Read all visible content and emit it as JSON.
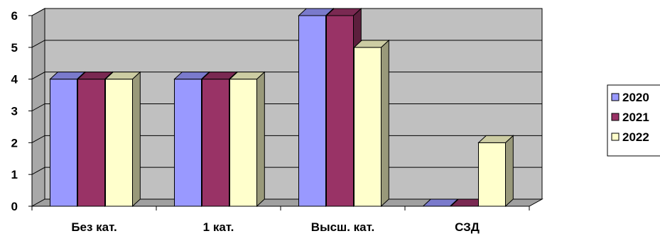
{
  "chart_data": {
    "type": "bar",
    "categories": [
      "Без кат.",
      "1 кат.",
      "Высш. кат.",
      "СЗД"
    ],
    "series": [
      {
        "name": "2020",
        "values": [
          4,
          4,
          6,
          0
        ],
        "color": "#9999ff"
      },
      {
        "name": "2021",
        "values": [
          4,
          4,
          6,
          0
        ],
        "color": "#993366"
      },
      {
        "name": "2022",
        "values": [
          4,
          4,
          5,
          2
        ],
        "color": "#ffffcc"
      }
    ],
    "ylim": [
      0,
      6
    ],
    "yticks": [
      "0",
      "1",
      "2",
      "3",
      "4",
      "5",
      "6"
    ],
    "grid": true,
    "style": "3d-clustered-column",
    "wall_color": "#c0c0c0",
    "legend_position": "right"
  }
}
